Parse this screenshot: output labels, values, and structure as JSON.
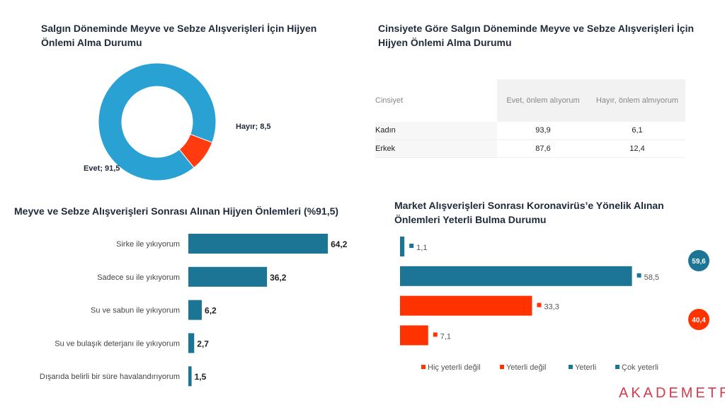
{
  "chart_data": [
    {
      "type": "pie",
      "title": "Salgın Döneminde Meyve ve Sebze Alışverişleri İçin Hijyen Önlemi Alma Durumu",
      "slices": [
        {
          "label": "Evet",
          "value": 91.5,
          "data_label": "Evet; 91,5",
          "color": "#2aa1d3"
        },
        {
          "label": "Hayır",
          "value": 8.5,
          "data_label": "Hayır; 8,5",
          "color": "#ff3b0f"
        }
      ],
      "donut": true
    },
    {
      "type": "table",
      "title": "Cinsiyete Göre Salgın Döneminde Meyve ve Sebze Alışverişleri İçin Hijyen Önlemi Alma Durumu",
      "columns": [
        "Cinsiyet",
        "Evet, önlem alıyorum",
        "Hayır, önlem almıyorum"
      ],
      "rows": [
        [
          "Kadın",
          "93,9",
          "6,1"
        ],
        [
          "Erkek",
          "87,6",
          "12,4"
        ]
      ]
    },
    {
      "type": "bar",
      "orientation": "horizontal",
      "title": "Meyve ve Sebze Alışverişleri Sonrası Alınan Hijyen Önlemleri (%91,5)",
      "categories": [
        "Sirke ile yıkıyorum",
        "Sadece su ile yıkıyorum",
        "Su ve sabun ile yıkıyorum",
        "Su ve bulaşık deterjanı ile yıkıyorum",
        "Dışarıda belirli bir süre havalandırıyorum"
      ],
      "values": [
        64.2,
        36.2,
        6.2,
        2.7,
        1.5
      ],
      "labels": [
        "64,2",
        "36,2",
        "6,2",
        "2,7",
        "1,5"
      ],
      "color": "#1d7596"
    },
    {
      "type": "bar",
      "orientation": "horizontal",
      "title": "Market Alışverişleri Sonrası Koronavirüs’e Yönelik Alınan Önlemleri Yeterli Bulma Durumu",
      "series": [
        {
          "name": "Çok yeterli",
          "value": 1.1,
          "label": "1,1",
          "color": "#1d7596"
        },
        {
          "name": "Yeterli",
          "value": 58.5,
          "label": "58,5",
          "color": "#1d7596"
        },
        {
          "name": "Yeterli değil",
          "value": 33.3,
          "label": "33,3",
          "color": "#ff3300"
        },
        {
          "name": "Hiç yeterli değil",
          "value": 7.1,
          "label": "7,1",
          "color": "#ff3300"
        }
      ],
      "legend": [
        "Hiç yeterli değil",
        "Yeterli değil",
        "Yeterli",
        "Çok yeterli"
      ],
      "legend_placement": "bottom",
      "totals": [
        {
          "label": "59,6",
          "color": "#1d7596"
        },
        {
          "label": "40,4",
          "color": "#ff3300"
        }
      ]
    }
  ],
  "logo": "AKADEMETRE"
}
